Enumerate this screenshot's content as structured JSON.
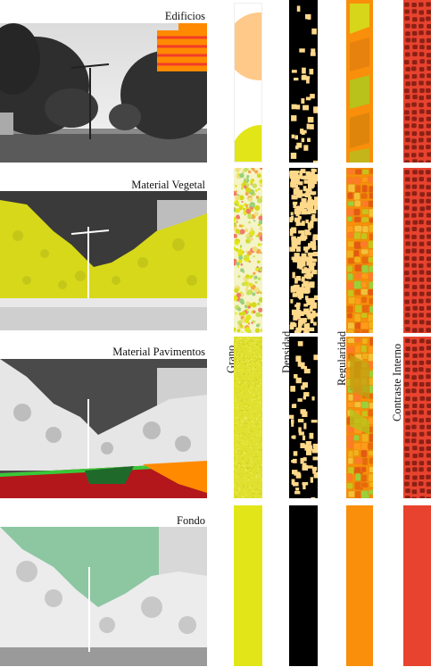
{
  "rows": [
    {
      "label": "Edificios"
    },
    {
      "label": "Material Vegetal"
    },
    {
      "label": "Material Pavimentos"
    },
    {
      "label": "Fondo"
    }
  ],
  "columns": [
    {
      "title": "Grano"
    },
    {
      "title": "Densidad"
    },
    {
      "title": "Regularidad"
    },
    {
      "title": "Contraste Interno"
    }
  ],
  "colors": {
    "buildings": "#ff8a00",
    "vegetation": "#e0e11a",
    "pavement": "#b3171b",
    "background": "#8cc7a2",
    "grain_yellow": "#e2e619",
    "grain_peach": "#ffc98a",
    "density_black": "#000000",
    "density_dot": "#ffd98a",
    "regularity_orange": "#f98f0a",
    "contrast_red": "#e8432f",
    "contrast_dark": "#7a1a10"
  }
}
